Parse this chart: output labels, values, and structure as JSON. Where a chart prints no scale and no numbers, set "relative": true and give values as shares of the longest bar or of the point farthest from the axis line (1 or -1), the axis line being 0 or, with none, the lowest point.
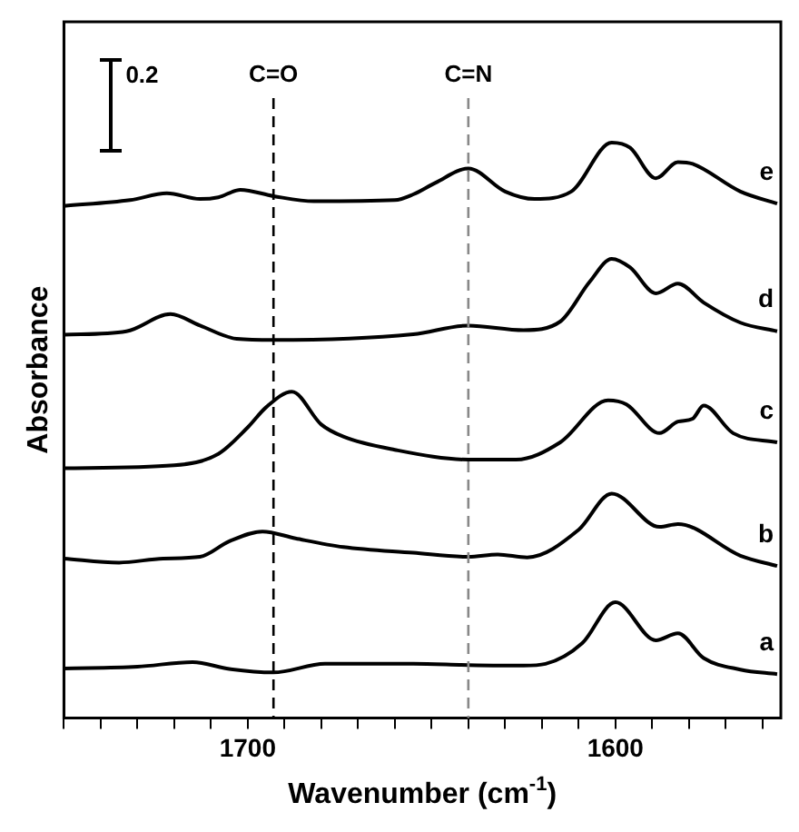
{
  "chart_data": {
    "type": "line",
    "relative": true,
    "xlabel": "Wavenumber (cm$^{-1}$)",
    "ylabel": "Absorbance",
    "xlim": [
      1750,
      1555
    ],
    "xticks": [
      {
        "value": 1750,
        "label": null
      },
      {
        "value": 1740,
        "label": null
      },
      {
        "value": 1730,
        "label": null
      },
      {
        "value": 1720,
        "label": null
      },
      {
        "value": 1710,
        "label": null
      },
      1700,
      {
        "value": 1690,
        "label": null
      },
      {
        "value": 1680,
        "label": null
      },
      {
        "value": 1670,
        "label": null
      },
      {
        "value": 1660,
        "label": null
      },
      {
        "value": 1650,
        "label": null
      },
      {
        "value": 1640,
        "label": null
      },
      {
        "value": 1630,
        "label": null
      },
      {
        "value": 1620,
        "label": null
      },
      {
        "value": 1610,
        "label": null
      },
      1600,
      {
        "value": 1590,
        "label": null
      },
      {
        "value": 1580,
        "label": null
      },
      {
        "value": 1570,
        "label": null
      },
      {
        "value": 1560,
        "label": null
      }
    ],
    "grid": false,
    "legend": false,
    "marker": "none",
    "line_style": "solid",
    "annotations": [
      "0.2"
    ],
    "ref_lines": [
      {
        "axis": "x",
        "value": 1693,
        "label": "C=O",
        "color": "#000000",
        "line_style": "dashed"
      },
      {
        "axis": "x",
        "value": 1640,
        "label": "C=N",
        "color": "#888888",
        "line_style": "dashed"
      }
    ],
    "series": [
      {
        "name": "e",
        "color": "#000000",
        "x": [
          1750,
          1732,
          1722,
          1713,
          1708,
          1702,
          1693,
          1682,
          1660,
          1655,
          1649,
          1640,
          1630,
          1622,
          1612,
          1601,
          1596,
          1589,
          1583,
          1579,
          1566,
          1556
        ],
        "values": [
          0.89,
          0.9,
          0.912,
          0.902,
          0.905,
          0.918,
          0.907,
          0.898,
          0.9,
          0.91,
          0.93,
          0.955,
          0.915,
          0.902,
          0.915,
          1.0,
          0.991,
          0.938,
          0.966,
          0.963,
          0.915,
          0.894
        ]
      },
      {
        "name": "d",
        "color": "#000000",
        "x": [
          1750,
          1733,
          1721,
          1713,
          1703,
          1693,
          1655,
          1640,
          1625,
          1615,
          1607,
          1601,
          1596,
          1589,
          1583,
          1576,
          1566,
          1556
        ],
        "values": [
          0.666,
          0.672,
          0.702,
          0.682,
          0.659,
          0.657,
          0.667,
          0.682,
          0.674,
          0.689,
          0.758,
          0.798,
          0.783,
          0.738,
          0.755,
          0.722,
          0.687,
          0.672
        ]
      },
      {
        "name": "c",
        "color": "#000000",
        "x": [
          1750,
          1720,
          1708,
          1700,
          1695,
          1688,
          1680,
          1674,
          1660,
          1640,
          1627,
          1615,
          1602,
          1597,
          1588,
          1583,
          1579,
          1576,
          1568,
          1556
        ],
        "values": [
          0.434,
          0.439,
          0.459,
          0.505,
          0.54,
          0.567,
          0.51,
          0.489,
          0.466,
          0.449,
          0.449,
          0.479,
          0.552,
          0.545,
          0.495,
          0.515,
          0.52,
          0.543,
          0.495,
          0.479
        ]
      },
      {
        "name": "b",
        "color": "#000000",
        "x": [
          1750,
          1735,
          1723,
          1713,
          1705,
          1696,
          1687,
          1674,
          1655,
          1640,
          1632,
          1624,
          1610,
          1601,
          1588,
          1583,
          1566,
          1556
        ],
        "values": [
          0.277,
          0.27,
          0.277,
          0.28,
          0.307,
          0.324,
          0.312,
          0.297,
          0.287,
          0.28,
          0.284,
          0.279,
          0.327,
          0.39,
          0.332,
          0.337,
          0.282,
          0.264
        ]
      },
      {
        "name": "a",
        "color": "#000000",
        "x": [
          1750,
          1730,
          1715,
          1705,
          1693,
          1679,
          1655,
          1640,
          1625,
          1619,
          1609,
          1600,
          1589,
          1583,
          1576,
          1566,
          1556
        ],
        "values": [
          0.086,
          0.089,
          0.097,
          0.085,
          0.079,
          0.094,
          0.094,
          0.092,
          0.091,
          0.094,
          0.13,
          0.201,
          0.135,
          0.147,
          0.104,
          0.084,
          0.076
        ]
      }
    ]
  }
}
